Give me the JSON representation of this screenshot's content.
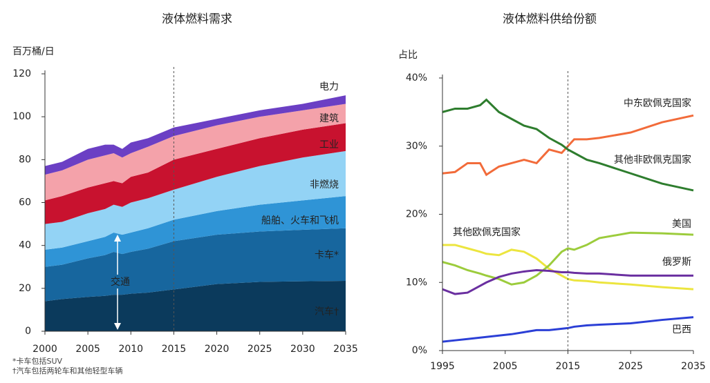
{
  "chart_data": [
    {
      "type": "stacked_area",
      "title": "液体燃料需求",
      "y_label": "百万桶/日",
      "annotation": "交通",
      "footnotes": [
        "*卡车包括SUV",
        "†汽车包括两轮车和其他轻型车辆"
      ],
      "x": [
        2000,
        2002,
        2005,
        2007,
        2008,
        2009,
        2010,
        2012,
        2015,
        2020,
        2025,
        2030,
        2035
      ],
      "xlim": [
        2000,
        2035
      ],
      "xticks": [
        2000,
        2005,
        2010,
        2015,
        2020,
        2025,
        2030,
        2035
      ],
      "ylim": [
        0,
        120
      ],
      "yticks": [
        0,
        20,
        40,
        60,
        80,
        100,
        120
      ],
      "vline": 2015,
      "series": [
        {
          "name": "汽车†",
          "color": "#0b3a5c",
          "values": [
            14,
            15,
            16,
            16.5,
            17,
            17,
            17.5,
            18,
            19.5,
            22,
            23,
            23.3,
            23.5
          ]
        },
        {
          "name": "卡车*",
          "color": "#17669e",
          "values": [
            16,
            16,
            18,
            19,
            20,
            19,
            19.5,
            20.5,
            22.5,
            23,
            23.5,
            24,
            24.5
          ]
        },
        {
          "name": "船舶、火车和飞机",
          "color": "#2f94d6",
          "values": [
            8,
            8,
            8,
            8.5,
            9,
            9,
            9,
            9.5,
            10,
            11,
            12.5,
            13.7,
            15
          ]
        },
        {
          "name": "非燃烧",
          "color": "#93d3f5",
          "values": [
            12,
            12,
            13,
            13,
            13,
            13,
            14,
            14,
            14,
            16,
            18,
            20,
            21
          ]
        },
        {
          "name": "工业",
          "color": "#c8122f",
          "values": [
            11,
            12,
            12,
            12,
            11,
            11,
            12,
            12,
            14,
            13,
            13,
            13,
            13
          ]
        },
        {
          "name": "建筑",
          "color": "#f4a2aa",
          "values": [
            12,
            12,
            13,
            13,
            13,
            12,
            11,
            12,
            11,
            11,
            10,
            9,
            9
          ]
        },
        {
          "name": "电力",
          "color": "#6b3fc4",
          "values": [
            4,
            4,
            5,
            5,
            4,
            4,
            5,
            4,
            4,
            3,
            3,
            3,
            4
          ]
        }
      ]
    },
    {
      "type": "line",
      "title": "液体燃料供给份额",
      "y_label": "占比",
      "x": [
        1995,
        1997,
        1999,
        2001,
        2002,
        2004,
        2006,
        2008,
        2010,
        2012,
        2014,
        2015,
        2016,
        2018,
        2020,
        2025,
        2030,
        2035
      ],
      "xlim": [
        1995,
        2035
      ],
      "xticks": [
        1995,
        2005,
        2015,
        2025,
        2035
      ],
      "ylim": [
        0,
        40
      ],
      "yticks": [
        {
          "value": 0,
          "label": "0%"
        },
        {
          "value": 10,
          "label": "10%"
        },
        {
          "value": 20,
          "label": "20%"
        },
        {
          "value": 30,
          "label": "30%"
        },
        {
          "value": 40,
          "label": "40%"
        }
      ],
      "vline": 2015,
      "series": [
        {
          "name": "中东欧佩克国家",
          "color": "#f26b3a",
          "values": [
            26,
            26.2,
            27.5,
            27.5,
            25.8,
            27,
            27.5,
            28,
            27.5,
            29.5,
            29,
            30,
            31,
            31,
            31.2,
            32,
            33.5,
            34.5
          ]
        },
        {
          "name": "其他非欧佩克国家",
          "color": "#2e7d2e",
          "values": [
            35,
            35.5,
            35.5,
            36,
            36.8,
            35,
            34,
            33,
            32.5,
            31.2,
            30.2,
            29.5,
            29,
            28,
            27.5,
            26,
            24.5,
            23.5
          ]
        },
        {
          "name": "其他欧佩克国家",
          "color": "#ece53f",
          "values": [
            15.5,
            15.5,
            15,
            14.5,
            14.2,
            14,
            14.8,
            14.5,
            13.5,
            12,
            11,
            10.5,
            10.3,
            10.2,
            10,
            9.7,
            9.3,
            9
          ]
        },
        {
          "name": "美国",
          "color": "#9ccc3c",
          "values": [
            13,
            12.5,
            11.8,
            11.3,
            11,
            10.5,
            9.7,
            10,
            11,
            12.5,
            14.5,
            15,
            14.8,
            15.5,
            16.5,
            17.3,
            17.2,
            17
          ]
        },
        {
          "name": "俄罗斯",
          "color": "#6a2fa0",
          "values": [
            9,
            8.3,
            8.5,
            9.5,
            10,
            10.8,
            11.3,
            11.6,
            11.8,
            11.7,
            11.5,
            11.5,
            11.4,
            11.3,
            11.3,
            11,
            11,
            11
          ]
        },
        {
          "name": "巴西",
          "color": "#2b3fd6",
          "values": [
            1.3,
            1.5,
            1.7,
            1.9,
            2,
            2.2,
            2.4,
            2.7,
            3,
            3,
            3.2,
            3.3,
            3.5,
            3.7,
            3.8,
            4,
            4.5,
            4.9
          ]
        }
      ]
    }
  ]
}
